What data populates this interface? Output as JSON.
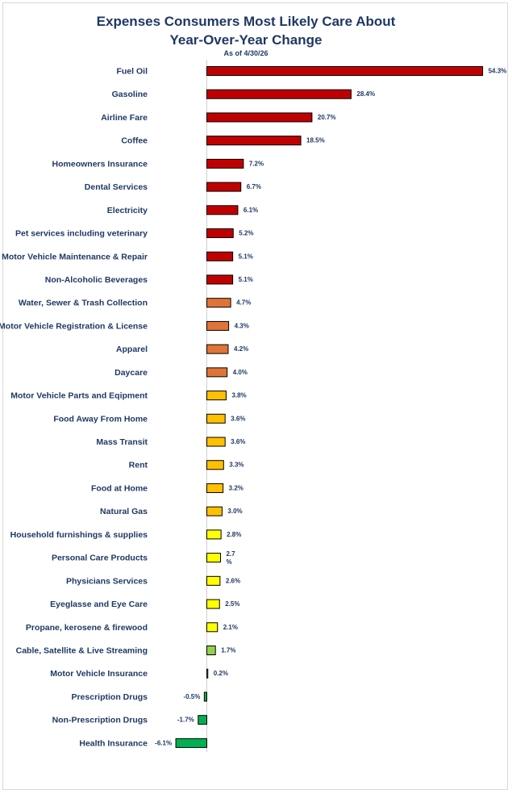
{
  "chart_data": {
    "type": "bar",
    "orientation": "horizontal",
    "title": "Expenses Consumers Most Likely Care About",
    "title_line2": "Year-Over-Year Change",
    "subtitle": "As of 4/30/26",
    "value_suffix": "%",
    "grid": false,
    "legend": "none",
    "bars": [
      {
        "label": "Fuel Oil",
        "value": 54.3,
        "display": "54.3%",
        "color": "#c00000"
      },
      {
        "label": "Gasoline",
        "value": 28.4,
        "display": "28.4%",
        "color": "#c00000"
      },
      {
        "label": "Airline Fare",
        "value": 20.7,
        "display": "20.7%",
        "color": "#c00000"
      },
      {
        "label": "Coffee",
        "value": 18.5,
        "display": "18.5%",
        "color": "#c00000"
      },
      {
        "label": "Homeowners Insurance",
        "value": 7.2,
        "display": "7.2%",
        "color": "#c00000"
      },
      {
        "label": "Dental Services",
        "value": 6.7,
        "display": "6.7%",
        "color": "#c00000"
      },
      {
        "label": "Electricity",
        "value": 6.1,
        "display": "6.1%",
        "color": "#c00000"
      },
      {
        "label": "Pet services including veterinary",
        "value": 5.2,
        "display": "5.2%",
        "color": "#c00000"
      },
      {
        "label": "Motor Vehicle Maintenance & Repair",
        "value": 5.1,
        "display": "5.1%",
        "color": "#c00000"
      },
      {
        "label": "Non-Alcoholic Beverages",
        "value": 5.1,
        "display": "5.1%",
        "color": "#c00000"
      },
      {
        "label": "Water, Sewer & Trash Collection",
        "value": 4.7,
        "display": "4.7%",
        "color": "#e07438"
      },
      {
        "label": "Motor Vehicle Registration & License",
        "value": 4.3,
        "display": "4.3%",
        "color": "#e07438"
      },
      {
        "label": "Apparel",
        "value": 4.2,
        "display": "4.2%",
        "color": "#e07438"
      },
      {
        "label": "Daycare",
        "value": 4.0,
        "display": "4.0%",
        "color": "#e07438"
      },
      {
        "label": "Motor Vehicle Parts and Eqipment",
        "value": 3.8,
        "display": "3.8%",
        "color": "#ffc000"
      },
      {
        "label": "Food Away From Home",
        "value": 3.6,
        "display": "3.6%",
        "color": "#ffc000"
      },
      {
        "label": "Mass Transit",
        "value": 3.6,
        "display": "3.6%",
        "color": "#ffc000"
      },
      {
        "label": "Rent",
        "value": 3.3,
        "display": "3.3%",
        "color": "#ffc000"
      },
      {
        "label": "Food at Home",
        "value": 3.2,
        "display": "3.2%",
        "color": "#ffc000"
      },
      {
        "label": "Natural Gas",
        "value": 3.0,
        "display": "3.0%",
        "color": "#ffc000"
      },
      {
        "label": "Household furnishings & supplies",
        "value": 2.8,
        "display": "2.8%",
        "color": "#ffff00"
      },
      {
        "label": "Personal Care Products",
        "value": 2.7,
        "display": "2.7\n%",
        "color": "#ffff00"
      },
      {
        "label": "Physicians Services",
        "value": 2.6,
        "display": "2.6%",
        "color": "#ffff00"
      },
      {
        "label": "Eyeglasse and Eye Care",
        "value": 2.5,
        "display": "2.5%",
        "color": "#ffff00"
      },
      {
        "label": "Propane, kerosene & firewood",
        "value": 2.1,
        "display": "2.1%",
        "color": "#ffff00"
      },
      {
        "label": "Cable, Satellite & Live Streaming",
        "value": 1.7,
        "display": "1.7%",
        "color": "#92d050"
      },
      {
        "label": "Motor Vehicle Insurance",
        "value": 0.2,
        "display": "0.2%",
        "color": "#92d050"
      },
      {
        "label": "Prescription Drugs",
        "value": -0.5,
        "display": "-0.5%",
        "color": "#00b050"
      },
      {
        "label": "Non-Prescription Drugs",
        "value": -1.7,
        "display": "-1.7%",
        "color": "#00b050"
      },
      {
        "label": "Health Insurance",
        "value": -6.1,
        "display": "-6.1%",
        "color": "#00b050"
      }
    ]
  }
}
